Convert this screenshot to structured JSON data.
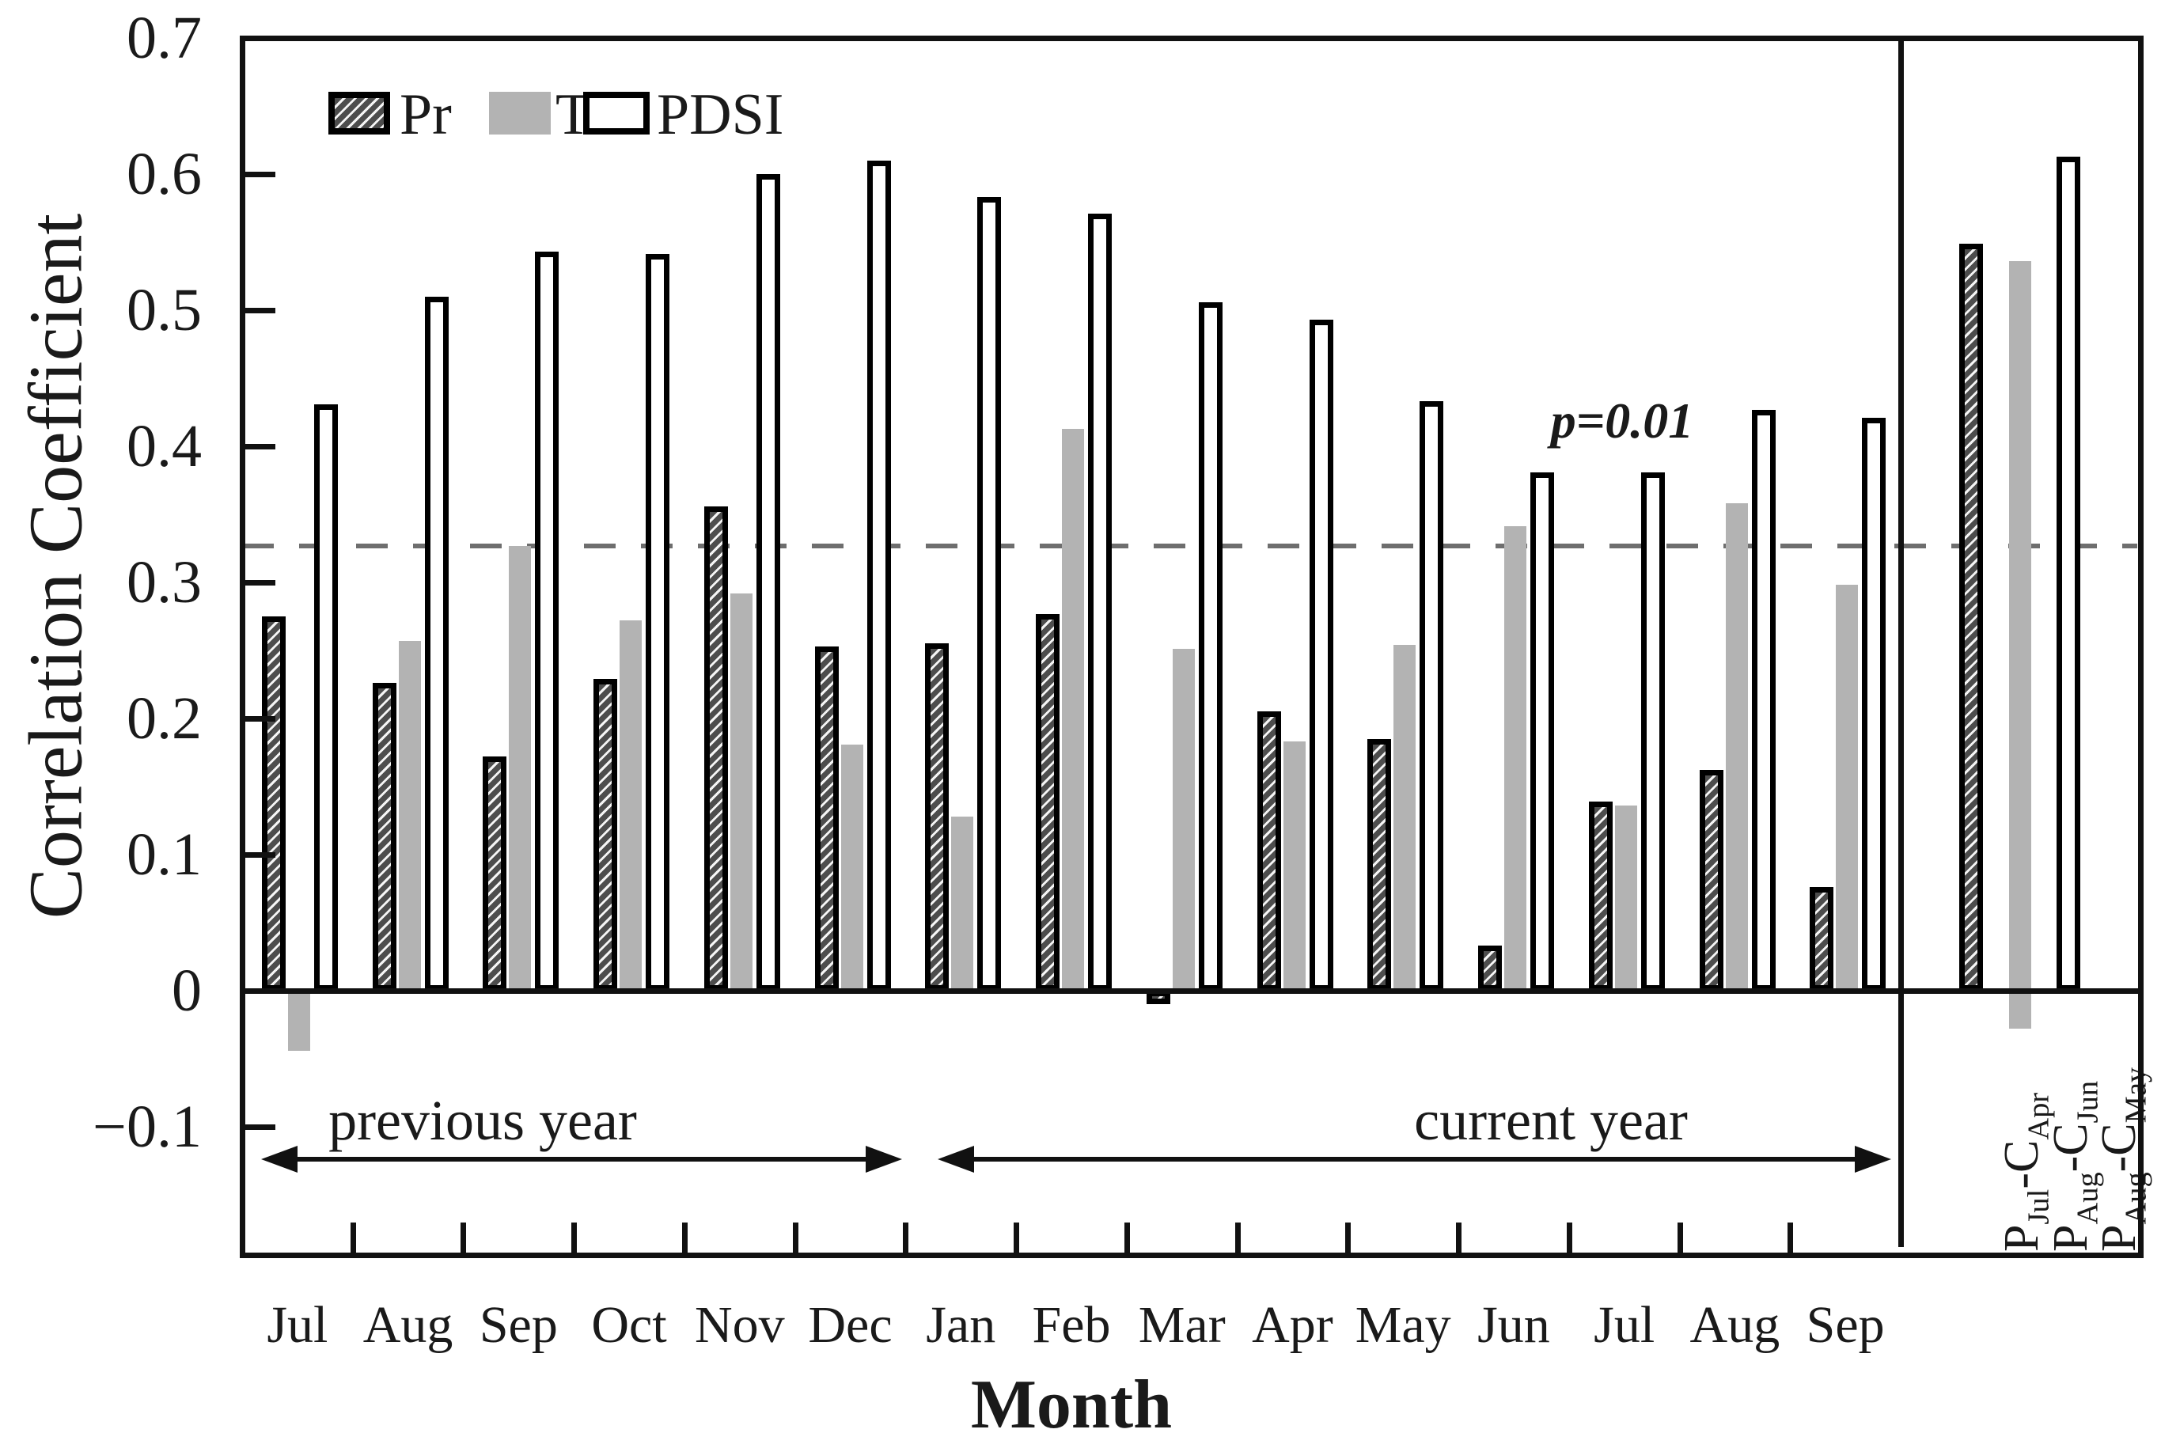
{
  "figure": {
    "y_axis_title": "Correlation Coefficient",
    "x_axis_title": "Month",
    "threshold_label": "p=0.01",
    "previous_year_label": "previous year",
    "current_year_label": "current year"
  },
  "legend": [
    {
      "name": "Pr",
      "style": "pr"
    },
    {
      "name": "T",
      "style": "t"
    },
    {
      "name": "PDSI",
      "style": "pdsi"
    }
  ],
  "colors": {
    "bar_outline": "#000000",
    "t_bar_fill": "#b3b3b3",
    "pr_hatch_dark": "#4d4d4d",
    "threshold_line": "#6e6e6e"
  },
  "chart_data": {
    "type": "bar",
    "title": "",
    "xlabel": "Month",
    "ylabel": "Correlation Coefficient",
    "ylim": [
      -0.2,
      0.7
    ],
    "grid": false,
    "legend_position": "top-left-inside",
    "y_ticks": [
      0.7,
      0.6,
      0.5,
      0.4,
      0.3,
      0.2,
      0.1,
      0,
      -0.1
    ],
    "y_tick_labels": [
      "0.7",
      "0.6",
      "0.5",
      "0.4",
      "0.3",
      "0.2",
      "0.1",
      "0",
      "−0.1"
    ],
    "threshold": {
      "value": 0.33,
      "label": "p=0.01",
      "style": "dashed"
    },
    "categories": [
      "Jul",
      "Aug",
      "Sep",
      "Oct",
      "Nov",
      "Dec",
      "Jan",
      "Feb",
      "Mar",
      "Apr",
      "May",
      "Jun",
      "Jul",
      "Aug",
      "Sep"
    ],
    "category_year_span": {
      "previous year": [
        "Jul",
        "Dec"
      ],
      "current year": [
        "Jan",
        "Sep"
      ]
    },
    "series": [
      {
        "name": "Pr",
        "values": [
          0.275,
          0.226,
          0.172,
          0.229,
          0.356,
          0.253,
          0.255,
          0.277,
          -0.01,
          0.205,
          0.185,
          0.033,
          0.139,
          0.162,
          0.076
        ]
      },
      {
        "name": "T",
        "values": [
          -0.044,
          0.257,
          0.327,
          0.272,
          0.292,
          0.181,
          0.128,
          0.413,
          0.251,
          0.183,
          0.254,
          0.341,
          0.136,
          0.358,
          0.298
        ]
      },
      {
        "name": "PDSI",
        "values": [
          0.431,
          0.51,
          0.543,
          0.541,
          0.6,
          0.61,
          0.583,
          0.571,
          0.506,
          0.493,
          0.433,
          0.381,
          0.381,
          0.427,
          0.421
        ]
      }
    ],
    "extra_bars": [
      {
        "label": "P_{Jul}-C_{Apr}",
        "series": "Pr",
        "value": 0.549
      },
      {
        "label": "P_{Aug}-C_{Jun}",
        "series": "T",
        "value": 0.536,
        "extends_below_baseline": true
      },
      {
        "label": "P_{Aug}-C_{May}",
        "series": "PDSI",
        "value": 0.613
      }
    ]
  }
}
